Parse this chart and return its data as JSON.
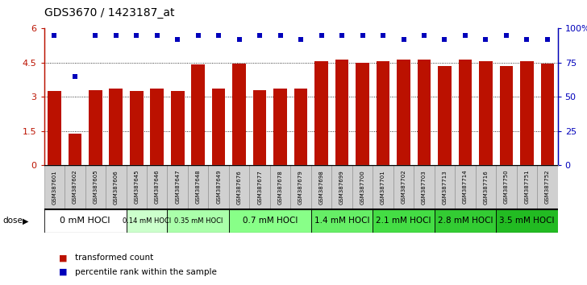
{
  "title": "GDS3670 / 1423187_at",
  "samples": [
    "GSM387601",
    "GSM387602",
    "GSM387605",
    "GSM387606",
    "GSM387645",
    "GSM387646",
    "GSM387647",
    "GSM387648",
    "GSM387649",
    "GSM387676",
    "GSM387677",
    "GSM387678",
    "GSM387679",
    "GSM387698",
    "GSM387699",
    "GSM387700",
    "GSM387701",
    "GSM387702",
    "GSM387703",
    "GSM387713",
    "GSM387714",
    "GSM387716",
    "GSM387750",
    "GSM387751",
    "GSM387752"
  ],
  "bar_values": [
    3.25,
    1.38,
    3.28,
    3.35,
    3.27,
    3.35,
    3.25,
    4.42,
    3.35,
    4.45,
    3.28,
    3.35,
    3.37,
    4.55,
    4.62,
    4.5,
    4.57,
    4.62,
    4.62,
    4.35,
    4.65,
    4.58,
    4.35,
    4.57,
    4.45
  ],
  "percentile_values": [
    95,
    65,
    95,
    95,
    95,
    95,
    92,
    95,
    95,
    92,
    95,
    95,
    92,
    95,
    95,
    95,
    95,
    92,
    95,
    92,
    95,
    92,
    95,
    92,
    92
  ],
  "bar_color": "#bb1100",
  "dot_color": "#0000bb",
  "ylim_left": [
    0,
    6
  ],
  "ylim_right": [
    0,
    100
  ],
  "yticks_left": [
    0,
    1.5,
    3.0,
    4.5,
    6.0
  ],
  "ytick_labels_left": [
    "0",
    "1.5",
    "3",
    "4.5",
    "6"
  ],
  "yticks_right": [
    0,
    25,
    50,
    75,
    100
  ],
  "ytick_labels_right": [
    "0",
    "25",
    "50",
    "75",
    "100%"
  ],
  "dose_groups": [
    {
      "label": "0 mM HOCl",
      "start": 0,
      "end": 4,
      "color": "#ffffff",
      "fontsize": 8
    },
    {
      "label": "0.14 mM HOCl",
      "start": 4,
      "end": 6,
      "color": "#ccffcc",
      "fontsize": 6
    },
    {
      "label": "0.35 mM HOCl",
      "start": 6,
      "end": 9,
      "color": "#aaffaa",
      "fontsize": 6
    },
    {
      "label": "0.7 mM HOCl",
      "start": 9,
      "end": 13,
      "color": "#88ff88",
      "fontsize": 7.5
    },
    {
      "label": "1.4 mM HOCl",
      "start": 13,
      "end": 16,
      "color": "#66ee66",
      "fontsize": 7.5
    },
    {
      "label": "2.1 mM HOCl",
      "start": 16,
      "end": 19,
      "color": "#44dd44",
      "fontsize": 7.5
    },
    {
      "label": "2.8 mM HOCl",
      "start": 19,
      "end": 22,
      "color": "#33cc33",
      "fontsize": 7.5
    },
    {
      "label": "3.5 mM HOCl",
      "start": 22,
      "end": 25,
      "color": "#22bb22",
      "fontsize": 7.5
    }
  ],
  "dose_label": "dose",
  "legend_bar_label": "transformed count",
  "legend_dot_label": "percentile rank within the sample",
  "background_color": "#ffffff",
  "plot_bg_color": "#ffffff",
  "sample_box_color": "#d0d0d0",
  "sample_box_edge": "#888888"
}
